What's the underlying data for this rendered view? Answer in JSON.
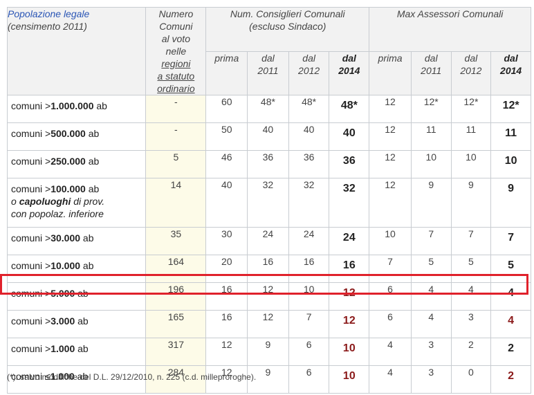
{
  "header": {
    "col0_line1": "Popolazione legale",
    "col0_line2": "(censimento 2011)",
    "col1_lines": [
      "Numero",
      "Comuni",
      "al voto",
      "nelle"
    ],
    "col1_underlined": [
      "regioni",
      "a statuto",
      "ordinario"
    ],
    "group1_line1": "Num. Consiglieri Comunali",
    "group1_line2": "(escluso Sindaco)",
    "group2": "Max Assessori Comunali",
    "sub": [
      {
        "l1": "prima",
        "l2": ""
      },
      {
        "l1": "dal",
        "l2": "2011"
      },
      {
        "l1": "dal",
        "l2": "2012"
      },
      {
        "l1": "dal",
        "l2": "2014"
      },
      {
        "l1": "prima",
        "l2": ""
      },
      {
        "l1": "dal",
        "l2": "2011"
      },
      {
        "l1": "dal",
        "l2": "2012"
      },
      {
        "l1": "dal",
        "l2": "2014"
      }
    ]
  },
  "rows": [
    {
      "label_pre": "comuni >",
      "label_bold": "1.000.000",
      "label_post": " ab",
      "nc": "-",
      "c": [
        "60",
        "48*",
        "48*",
        "48*",
        "12",
        "12*",
        "12*",
        "12*"
      ]
    },
    {
      "label_pre": "comuni >",
      "label_bold": "500.000",
      "label_post": " ab",
      "nc": "-",
      "c": [
        "50",
        "40",
        "40",
        "40",
        "12",
        "11",
        "11",
        "11"
      ]
    },
    {
      "label_pre": "comuni >",
      "label_bold": "250.000",
      "label_post": " ab",
      "nc": "5",
      "c": [
        "46",
        "36",
        "36",
        "36",
        "12",
        "10",
        "10",
        "10"
      ]
    },
    {
      "label_pre": "comuni >",
      "label_bold": "100.000",
      "label_post": " ab",
      "extra1_pre": "o ",
      "extra1_bold": "capoluoghi",
      "extra1_post": " di prov.",
      "extra2": "con popolaz. inferiore",
      "nc": "14",
      "c": [
        "40",
        "32",
        "32",
        "32",
        "12",
        "9",
        "9",
        "9"
      ]
    },
    {
      "label_pre": "comuni >",
      "label_bold": "30.000",
      "label_post": " ab",
      "nc": "35",
      "c": [
        "30",
        "24",
        "24",
        "24",
        "10",
        "7",
        "7",
        "7"
      ]
    },
    {
      "label_pre": "comuni >",
      "label_bold": "10.000",
      "label_post": " ab",
      "nc": "164",
      "c": [
        "20",
        "16",
        "16",
        "16",
        "7",
        "5",
        "5",
        "5"
      ]
    },
    {
      "label_pre": "comuni >",
      "label_bold": "5.000",
      "label_post": " ab",
      "nc": "196",
      "c": [
        "16",
        "12",
        "10",
        "12",
        "6",
        "4",
        "4",
        "4"
      ]
    },
    {
      "label_pre": "comuni >",
      "label_bold": "3.000",
      "label_post": " ab",
      "nc": "165",
      "c": [
        "16",
        "12",
        "7",
        "12",
        "6",
        "4",
        "3",
        "4"
      ]
    },
    {
      "label_pre": "comuni >",
      "label_bold": "1.000",
      "label_post": " ab",
      "nc": "317",
      "c": [
        "12",
        "9",
        "6",
        "10",
        "4",
        "3",
        "2",
        "2"
      ]
    },
    {
      "label_pre": "comuni ≤",
      "label_bold": "1.000",
      "label_post": " ab",
      "nc": "284",
      "c": [
        "12",
        "9",
        "6",
        "10",
        "4",
        "3",
        "0",
        "2"
      ]
    }
  ],
  "footnote": "(*): salvo modifiche del D.L. 29/12/2010, n. 225 (c.d. milleproroghe).",
  "colors": {
    "highlight_border": "#e0212b",
    "red_value": "#8b1a1a",
    "nc_bg": "#fdfbe8"
  }
}
